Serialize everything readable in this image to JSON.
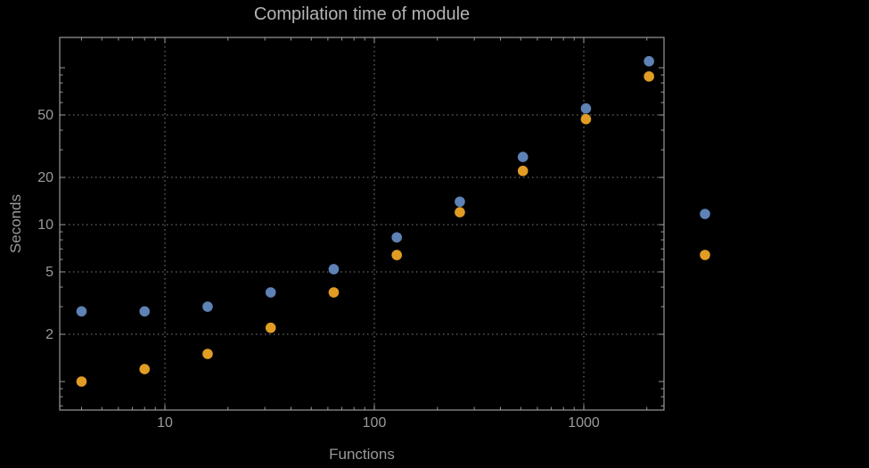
{
  "chart_data": {
    "type": "scatter",
    "title": "Compilation time of module",
    "xlabel": "Functions",
    "ylabel": "Seconds",
    "x_scale": "log",
    "y_scale": "log",
    "xlim": [
      3.15,
      2400
    ],
    "ylim": [
      0.66,
      155
    ],
    "x_ticks": [
      10,
      100,
      1000
    ],
    "y_ticks": [
      2,
      5,
      10,
      20,
      50
    ],
    "grid": "dotted",
    "x": [
      4,
      8,
      16,
      32,
      64,
      128,
      256,
      512,
      1024,
      2048
    ],
    "series": [
      {
        "name": "series-blue",
        "color": "#5e82b5",
        "values": [
          2.8,
          2.8,
          3.0,
          3.7,
          5.2,
          8.3,
          14,
          27,
          55,
          110
        ]
      },
      {
        "name": "series-orange",
        "color": "#e19c24",
        "values": [
          1.0,
          1.2,
          1.5,
          2.2,
          3.7,
          6.4,
          12,
          22,
          47,
          88
        ]
      }
    ],
    "legend": {
      "position": "right",
      "markers": [
        "#5e82b5",
        "#e19c24"
      ]
    },
    "colors": {
      "frame": "#9a9a9a",
      "grid": "#686868",
      "tick_text": "#9a9a9a"
    }
  }
}
